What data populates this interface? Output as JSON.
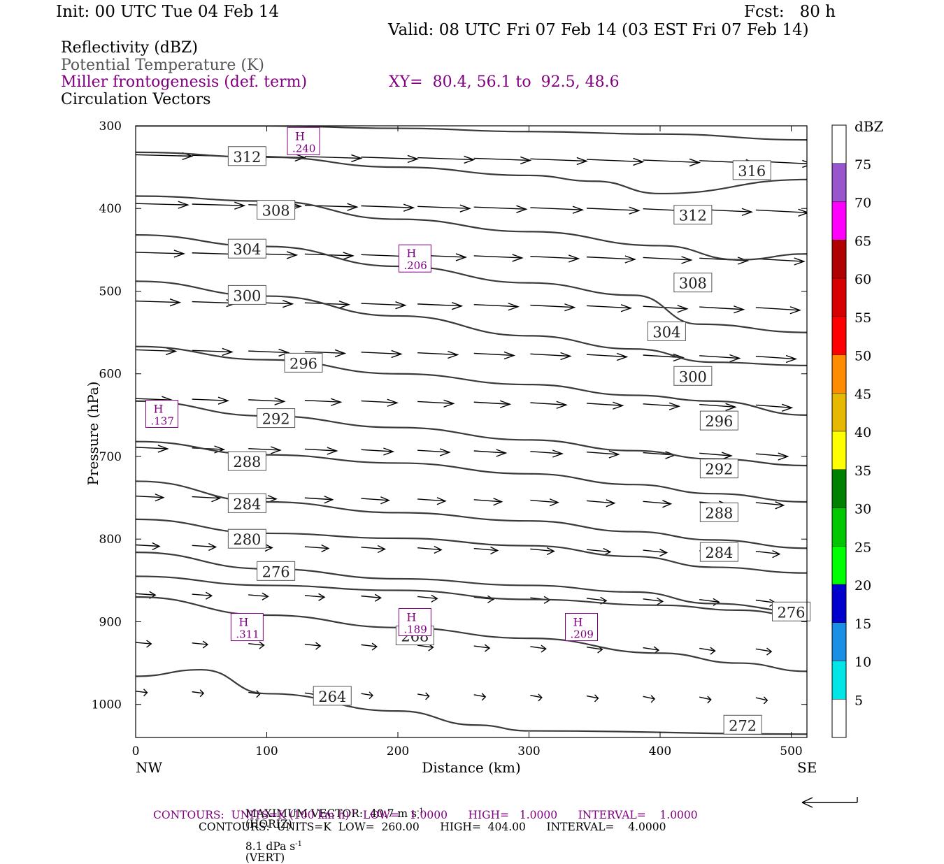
{
  "header": {
    "init": "Init: 00 UTC Tue 04 Feb 14",
    "fcst": "Fcst:   80 h",
    "valid": "Valid: 08 UTC Fri 07 Feb 14 (03 EST Fri 07 Feb 14)"
  },
  "legend": {
    "line1": "Reflectivity (dBZ)",
    "line2": "Potential Temperature (K)",
    "line3": "Miller frontogenesis (def. term)",
    "xy": "XY=  80.4, 56.1 to  92.5, 48.6",
    "line4": "Circulation Vectors"
  },
  "colors": {
    "theta": "#3a3a3a",
    "fronto": "#800080",
    "vectors": "#000000"
  },
  "chart_data": {
    "type": "cross-section",
    "xlabel": "Distance (km)",
    "ylabel": "Pressure (hPa)",
    "xlim": [
      0,
      512
    ],
    "ylim": [
      300,
      1040
    ],
    "y_inverted": true,
    "x_ticks": [
      0,
      100,
      200,
      300,
      400,
      500
    ],
    "y_ticks": [
      300,
      400,
      500,
      600,
      700,
      800,
      900,
      1000
    ],
    "x_end_labels": {
      "left": "NW",
      "right": "SE"
    },
    "theta_isentropes": [
      {
        "value": 316,
        "points": [
          [
            0,
            300
          ],
          [
            100,
            300
          ],
          [
            200,
            303
          ],
          [
            300,
            307
          ],
          [
            400,
            310
          ],
          [
            512,
            317
          ]
        ]
      },
      {
        "value": 312,
        "points": [
          [
            0,
            332
          ],
          [
            100,
            338
          ],
          [
            200,
            350
          ],
          [
            300,
            360
          ],
          [
            350,
            367
          ],
          [
            400,
            382
          ],
          [
            512,
            365
          ]
        ]
      },
      {
        "value": 308,
        "points": [
          [
            0,
            385
          ],
          [
            100,
            391
          ],
          [
            200,
            413
          ],
          [
            300,
            428
          ],
          [
            400,
            445
          ],
          [
            460,
            462
          ],
          [
            512,
            455
          ]
        ]
      },
      {
        "value": 304,
        "points": [
          [
            0,
            432
          ],
          [
            100,
            446
          ],
          [
            200,
            470
          ],
          [
            300,
            490
          ],
          [
            380,
            505
          ],
          [
            430,
            540
          ],
          [
            512,
            550
          ]
        ]
      },
      {
        "value": 300,
        "points": [
          [
            0,
            488
          ],
          [
            100,
            506
          ],
          [
            200,
            530
          ],
          [
            300,
            554
          ],
          [
            380,
            570
          ],
          [
            440,
            586
          ],
          [
            512,
            590
          ]
        ]
      },
      {
        "value": 296,
        "points": [
          [
            0,
            567
          ],
          [
            100,
            583
          ],
          [
            200,
            600
          ],
          [
            300,
            613
          ],
          [
            380,
            626
          ],
          [
            440,
            633
          ],
          [
            512,
            650
          ]
        ]
      },
      {
        "value": 292,
        "points": [
          [
            0,
            633
          ],
          [
            100,
            651
          ],
          [
            200,
            665
          ],
          [
            300,
            680
          ],
          [
            380,
            693
          ],
          [
            440,
            703
          ],
          [
            512,
            711
          ]
        ]
      },
      {
        "value": 288,
        "points": [
          [
            0,
            682
          ],
          [
            100,
            698
          ],
          [
            200,
            708
          ],
          [
            300,
            721
          ],
          [
            380,
            734
          ],
          [
            440,
            745
          ],
          [
            512,
            755
          ]
        ]
      },
      {
        "value": 284,
        "points": [
          [
            0,
            730
          ],
          [
            100,
            755
          ],
          [
            200,
            768
          ],
          [
            300,
            778
          ],
          [
            380,
            791
          ],
          [
            440,
            801
          ],
          [
            512,
            811
          ]
        ]
      },
      {
        "value": 280,
        "points": [
          [
            0,
            776
          ],
          [
            100,
            793
          ],
          [
            200,
            799
          ],
          [
            300,
            808
          ],
          [
            380,
            821
          ],
          [
            440,
            834
          ],
          [
            512,
            841
          ]
        ]
      },
      {
        "value": 276,
        "points": [
          [
            0,
            816
          ],
          [
            100,
            836
          ],
          [
            200,
            848
          ],
          [
            300,
            856
          ],
          [
            380,
            864
          ],
          [
            440,
            878
          ],
          [
            512,
            888
          ]
        ]
      },
      {
        "value": 272,
        "points": [
          [
            0,
            845
          ],
          [
            100,
            856
          ],
          [
            200,
            862
          ],
          [
            300,
            873
          ],
          [
            400,
            880
          ],
          [
            460,
            886
          ],
          [
            512,
            894
          ]
        ]
      },
      {
        "value": 268,
        "points": [
          [
            0,
            870
          ],
          [
            100,
            892
          ],
          [
            200,
            907
          ],
          [
            300,
            920
          ],
          [
            400,
            938
          ],
          [
            460,
            950
          ],
          [
            512,
            960
          ]
        ]
      },
      {
        "value": 264,
        "points": [
          [
            0,
            966
          ],
          [
            50,
            958
          ],
          [
            100,
            987
          ],
          [
            200,
            1008
          ],
          [
            260,
            1025
          ],
          [
            300,
            1032
          ],
          [
            512,
            1036
          ]
        ]
      }
    ],
    "contour_labels_theta": [
      {
        "text": "316",
        "x": 470,
        "y": 354
      },
      {
        "text": "312",
        "x": 85,
        "y": 337
      },
      {
        "text": "312",
        "x": 425,
        "y": 408
      },
      {
        "text": "308",
        "x": 107,
        "y": 402
      },
      {
        "text": "308",
        "x": 425,
        "y": 490
      },
      {
        "text": "304",
        "x": 85,
        "y": 449
      },
      {
        "text": "304",
        "x": 405,
        "y": 549
      },
      {
        "text": "300",
        "x": 85,
        "y": 505
      },
      {
        "text": "300",
        "x": 425,
        "y": 603
      },
      {
        "text": "296",
        "x": 128,
        "y": 587
      },
      {
        "text": "296",
        "x": 445,
        "y": 657
      },
      {
        "text": "292",
        "x": 107,
        "y": 654
      },
      {
        "text": "292",
        "x": 445,
        "y": 715
      },
      {
        "text": "288",
        "x": 85,
        "y": 706
      },
      {
        "text": "288",
        "x": 445,
        "y": 768
      },
      {
        "text": "284",
        "x": 85,
        "y": 757
      },
      {
        "text": "284",
        "x": 445,
        "y": 816
      },
      {
        "text": "280",
        "x": 85,
        "y": 800
      },
      {
        "text": "276",
        "x": 107,
        "y": 839
      },
      {
        "text": "276",
        "x": 500,
        "y": 888
      },
      {
        "text": "268",
        "x": 213,
        "y": 917
      },
      {
        "text": "264",
        "x": 150,
        "y": 990
      },
      {
        "text": "272",
        "x": 463,
        "y": 1025
      }
    ],
    "fronto_maxima": [
      {
        "label": "H",
        "value": ".240",
        "x": 128,
        "y": 318
      },
      {
        "label": "H",
        "value": ".206",
        "x": 213,
        "y": 460
      },
      {
        "label": "H",
        "value": ".137",
        "x": 20,
        "y": 648
      },
      {
        "label": "H",
        "value": ".311",
        "x": 85,
        "y": 906
      },
      {
        "label": "H",
        "value": ".189",
        "x": 213,
        "y": 900
      },
      {
        "label": "H",
        "value": ".209",
        "x": 340,
        "y": 906
      }
    ],
    "colorbar": {
      "unit": "dBZ",
      "levels": [
        5,
        10,
        15,
        20,
        25,
        30,
        35,
        40,
        45,
        50,
        55,
        60,
        65,
        70,
        75
      ],
      "colors": [
        "#00e6e6",
        "#1a8fe6",
        "#0000cc",
        "#00ff00",
        "#00c800",
        "#008000",
        "#ffff00",
        "#e6b800",
        "#ff8c00",
        "#ff0000",
        "#d60000",
        "#b00000",
        "#ff00ff",
        "#9955cc",
        "#ffffff"
      ]
    }
  },
  "footer": {
    "max_vector_label": "MAXIMUM VECTOR:  40.7 m s",
    "max_vector_exp": "-1",
    "max_vector_horiz": "(HORIZ)",
    "max_vector_vert": "8.1 dPa s",
    "max_vector_vert_exp": "-1",
    "max_vector_vert_tail": "(VERT)",
    "contours_fronto_a": "CONTOURS:  UNITS=K (100 km h)",
    "contours_fronto_exp": "-1",
    "contours_fronto_b": "  LOW=   1.0000      HIGH=   1.0000      INTERVAL=    1.0000",
    "contours_theta": "CONTOURS:  UNITS=K  LOW=  260.00      HIGH=  404.00      INTERVAL=    4.0000"
  }
}
